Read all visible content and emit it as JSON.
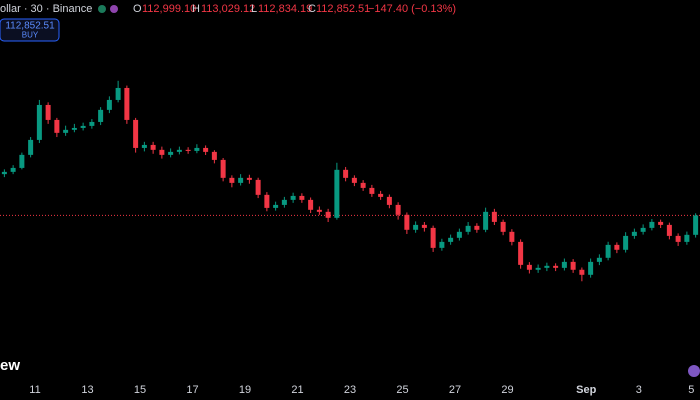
{
  "header": {
    "symbol": "ollar · 30 · Binance",
    "open_label": "O",
    "open": "112,999.10",
    "high_label": "H",
    "high": "113,029.12",
    "low_label": "L",
    "low": "112,834.19",
    "close_label": "C",
    "close": "112,852.51",
    "change": "−147.40 (−0.13%)"
  },
  "buy_button": {
    "price": "112,852.51",
    "label": "BUY"
  },
  "logo_fragment": "ew",
  "chart_data": {
    "type": "candlestick",
    "up_color": "#089981",
    "down_color": "#f23645",
    "ylim": [
      99100,
      130850
    ],
    "xlim": [
      0,
      80
    ],
    "last_price": 112852.51,
    "last_price_color": "#f23645",
    "xticks": [
      {
        "value": 4,
        "label": "11"
      },
      {
        "value": 10,
        "label": "13"
      },
      {
        "value": 16,
        "label": "15"
      },
      {
        "value": 22,
        "label": "17"
      },
      {
        "value": 28,
        "label": "19"
      },
      {
        "value": 34,
        "label": "21"
      },
      {
        "value": 40,
        "label": "23"
      },
      {
        "value": 46,
        "label": "25"
      },
      {
        "value": 52,
        "label": "27"
      },
      {
        "value": 58,
        "label": "29"
      },
      {
        "value": 67,
        "label": "Sep"
      },
      {
        "value": 73,
        "label": "3"
      },
      {
        "value": 79,
        "label": "5"
      }
    ],
    "open": [
      116300,
      116490,
      116820,
      117910,
      119160,
      122080,
      120830,
      119750,
      120000,
      120160,
      120330,
      120660,
      121670,
      122500,
      123500,
      120830,
      118490,
      118740,
      118330,
      117910,
      118160,
      118330,
      118240,
      118490,
      118160,
      117490,
      115990,
      115570,
      115990,
      115820,
      114570,
      113480,
      113730,
      114150,
      114480,
      114150,
      113320,
      113150,
      112650,
      116660,
      115990,
      115570,
      115150,
      114650,
      114400,
      113730,
      112900,
      111650,
      112060,
      111810,
      110140,
      110640,
      110980,
      111480,
      111980,
      111650,
      113150,
      112310,
      111480,
      110640,
      108720,
      108310,
      108470,
      108640,
      108470,
      108970,
      108310,
      107890,
      108970,
      109310,
      110390,
      109980,
      111140,
      111480,
      111810,
      112310,
      112060,
      111140,
      110640,
      111230
    ],
    "high": [
      116700,
      117050,
      118100,
      119400,
      122500,
      122300,
      121000,
      120350,
      120500,
      120600,
      120900,
      121900,
      122800,
      124100,
      123700,
      121000,
      119000,
      119000,
      118600,
      118450,
      118600,
      118550,
      118800,
      118700,
      118300,
      117650,
      116200,
      116300,
      116250,
      116000,
      114800,
      114000,
      114400,
      114750,
      114700,
      114350,
      113600,
      113400,
      117250,
      116900,
      116200,
      115800,
      115400,
      114900,
      114600,
      113950,
      113100,
      112350,
      112300,
      112000,
      110900,
      111250,
      111750,
      112300,
      112200,
      113500,
      113400,
      112500,
      111700,
      110850,
      108950,
      108750,
      108900,
      108850,
      109250,
      109200,
      108500,
      109250,
      109600,
      110650,
      110600,
      111450,
      111750,
      112100,
      112550,
      112500,
      112250,
      111350,
      111500,
      113030
    ],
    "low": [
      116050,
      116300,
      116700,
      117700,
      118900,
      120500,
      119400,
      119500,
      119800,
      119950,
      120100,
      120400,
      121400,
      122300,
      120500,
      118100,
      118200,
      118000,
      117600,
      117700,
      117950,
      118000,
      118050,
      117900,
      117200,
      115700,
      115200,
      115350,
      115500,
      114300,
      113200,
      113250,
      113500,
      113900,
      113900,
      113050,
      112900,
      112300,
      112500,
      115700,
      115300,
      114900,
      114400,
      114150,
      113450,
      112500,
      111300,
      111400,
      111500,
      109800,
      109900,
      110400,
      110750,
      111250,
      111400,
      111450,
      112050,
      111200,
      110350,
      108400,
      108000,
      108050,
      108200,
      108200,
      108250,
      108050,
      107350,
      107650,
      108700,
      109100,
      109700,
      109750,
      110900,
      111250,
      111600,
      111800,
      110850,
      110300,
      110400,
      111000
    ],
    "close": [
      116490,
      116820,
      117910,
      119160,
      122080,
      120830,
      119750,
      120000,
      120160,
      120330,
      120660,
      121670,
      122500,
      123500,
      120830,
      118490,
      118740,
      118330,
      117910,
      118160,
      118330,
      118240,
      118490,
      118160,
      117490,
      115990,
      115570,
      115990,
      115820,
      114570,
      113480,
      113730,
      114150,
      114480,
      114150,
      113320,
      113150,
      112650,
      116660,
      115990,
      115570,
      115150,
      114650,
      114400,
      113730,
      112900,
      111650,
      112060,
      111810,
      110140,
      110640,
      110980,
      111480,
      111980,
      111650,
      113150,
      112310,
      111480,
      110640,
      108720,
      108310,
      108470,
      108640,
      108470,
      108970,
      108310,
      107890,
      108970,
      109310,
      110390,
      109980,
      111140,
      111480,
      111810,
      112310,
      112060,
      111140,
      110640,
      111230,
      112850
    ]
  }
}
